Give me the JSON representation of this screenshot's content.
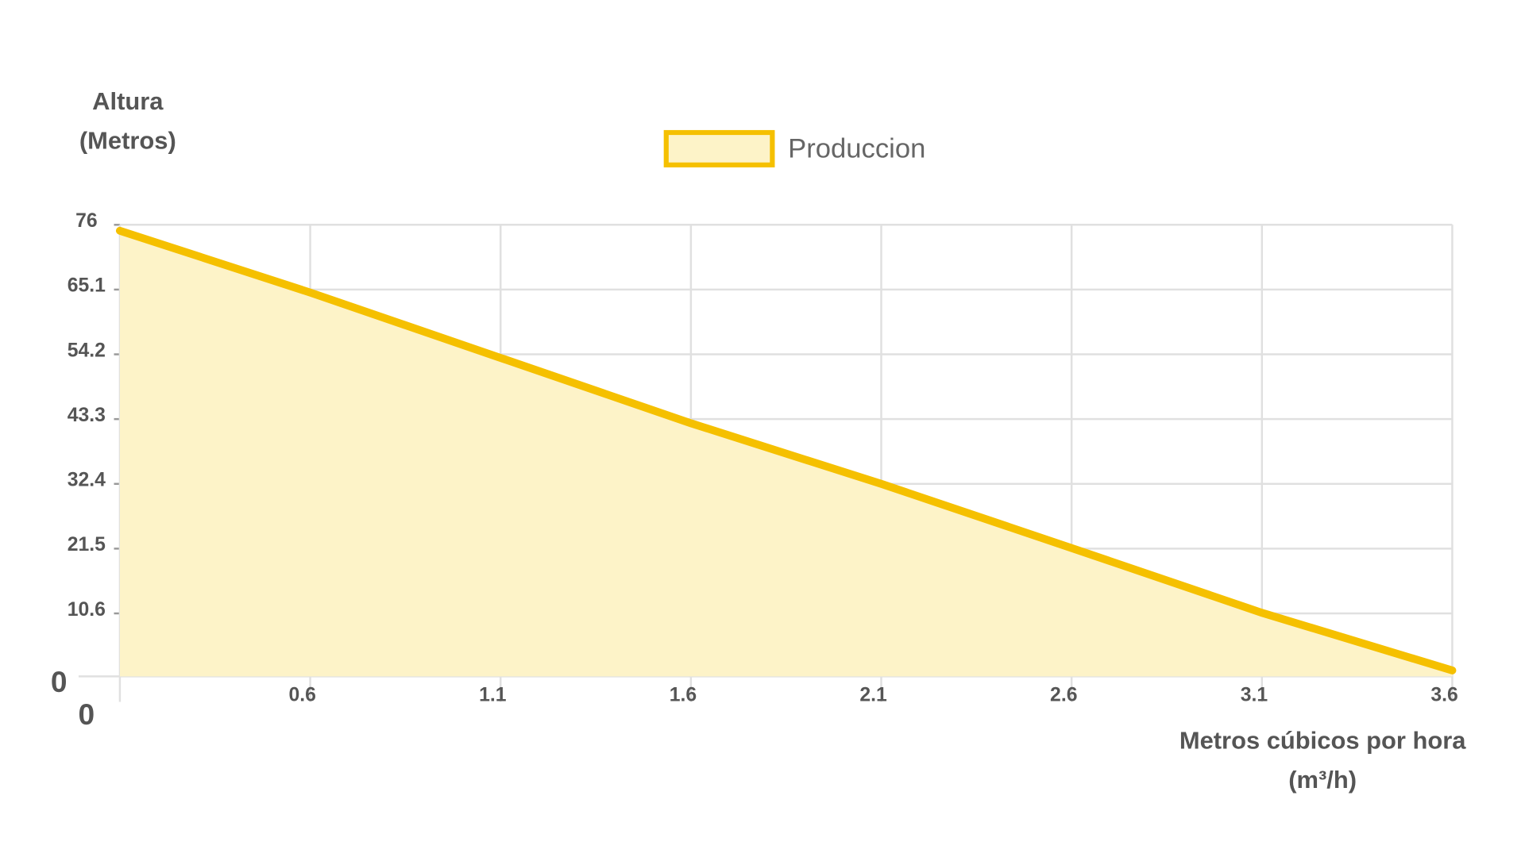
{
  "chart_data": {
    "type": "area",
    "y_label": [
      "Altura",
      "(Metros)"
    ],
    "x_label": [
      "Metros cúbicos por hora",
      "(m³/h)"
    ],
    "categories": [
      "0",
      "0.6",
      "1.1",
      "1.6",
      "2.1",
      "2.6",
      "3.1",
      "3.6"
    ],
    "series": [
      {
        "name": "Produccion",
        "color": "#f5c000",
        "fill": "#fdf3c8",
        "values": [
          75,
          64.6,
          53.6,
          42.6,
          32.4,
          21.6,
          10.7,
          1
        ]
      }
    ],
    "ylim": [
      0,
      76
    ],
    "yticks": [
      0,
      10.6,
      21.5,
      32.4,
      43.3,
      54.2,
      65.1,
      76
    ],
    "grid": true,
    "legend": "top"
  }
}
